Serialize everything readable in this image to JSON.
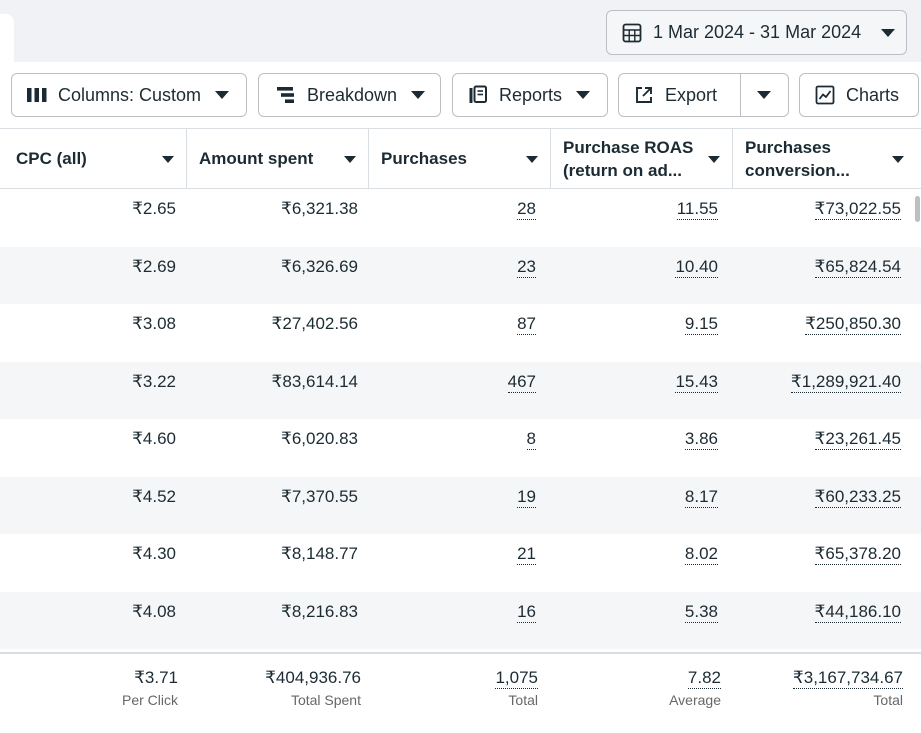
{
  "toolbar": {
    "date_range": "1 Mar 2024 - 31 Mar 2024",
    "columns_label": "Columns: Custom",
    "breakdown_label": "Breakdown",
    "reports_label": "Reports",
    "export_label": "Export",
    "charts_label": "Charts"
  },
  "table": {
    "headers": {
      "cpc": "CPC (all)",
      "amount": "Amount spent",
      "purchases": "Purchases",
      "roas_line1": "Purchase ROAS",
      "roas_line2": "(return on ad...",
      "conv_line1": "Purchases",
      "conv_line2": "conversion..."
    },
    "rows": [
      {
        "cpc": "₹2.65",
        "amount": "₹6,321.38",
        "purchases": "28",
        "roas": "11.55",
        "conv": "₹73,022.55"
      },
      {
        "cpc": "₹2.69",
        "amount": "₹6,326.69",
        "purchases": "23",
        "roas": "10.40",
        "conv": "₹65,824.54"
      },
      {
        "cpc": "₹3.08",
        "amount": "₹27,402.56",
        "purchases": "87",
        "roas": "9.15",
        "conv": "₹250,850.30"
      },
      {
        "cpc": "₹3.22",
        "amount": "₹83,614.14",
        "purchases": "467",
        "roas": "15.43",
        "conv": "₹1,289,921.40"
      },
      {
        "cpc": "₹4.60",
        "amount": "₹6,020.83",
        "purchases": "8",
        "roas": "3.86",
        "conv": "₹23,261.45"
      },
      {
        "cpc": "₹4.52",
        "amount": "₹7,370.55",
        "purchases": "19",
        "roas": "8.17",
        "conv": "₹60,233.25"
      },
      {
        "cpc": "₹4.30",
        "amount": "₹8,148.77",
        "purchases": "21",
        "roas": "8.02",
        "conv": "₹65,378.20"
      },
      {
        "cpc": "₹4.08",
        "amount": "₹8,216.83",
        "purchases": "16",
        "roas": "5.38",
        "conv": "₹44,186.10"
      }
    ],
    "totals": {
      "cpc": "₹3.71",
      "cpc_label": "Per Click",
      "amount": "₹404,936.76",
      "amount_label": "Total Spent",
      "purchases": "1,075",
      "purchases_label": "Total",
      "roas": "7.82",
      "roas_label": "Average",
      "conv": "₹3,167,734.67",
      "conv_label": "Total"
    }
  }
}
